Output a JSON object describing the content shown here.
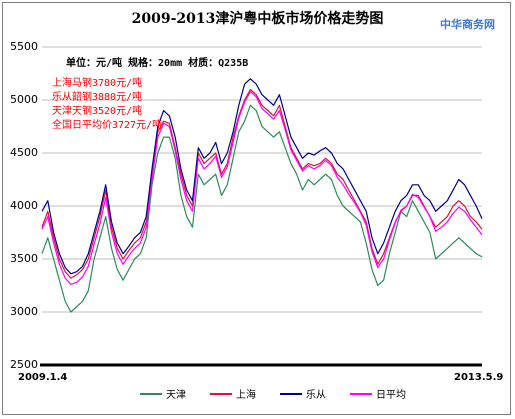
{
  "chart_data": {
    "type": "line",
    "title": "2009-2013津沪粤中板市场价格走势图",
    "brand": "中华商务网",
    "unit_note": "单位：元/吨 规格：20mm 材质：Q235B",
    "annotations": [
      "上海马钢3780元/吨",
      "乐从韶钢3880元/吨",
      "天津天钢3520元/吨",
      "全国日平均价3727元/吨"
    ],
    "x_start_label": "2009.1.4",
    "x_end_label": "2013.5.9",
    "ylim": [
      2500,
      5500
    ],
    "yticks": [
      2500,
      3000,
      3500,
      4000,
      4500,
      5000,
      5500
    ],
    "x": [
      0,
      2,
      4,
      6,
      8,
      10,
      12,
      14,
      16,
      18,
      20,
      22,
      24,
      26,
      28,
      30,
      32,
      34,
      36,
      38,
      40,
      42,
      44,
      46,
      48,
      50,
      52,
      54,
      56,
      58,
      60,
      62,
      64,
      66,
      68,
      70,
      72,
      74,
      76,
      78,
      80,
      82,
      84,
      86,
      88,
      90,
      92,
      94,
      96,
      98,
      100,
      102,
      104,
      106,
      108,
      110,
      112,
      114,
      116,
      118,
      120,
      122,
      124,
      126,
      128,
      130,
      132,
      134,
      136,
      138,
      140,
      142,
      144,
      146,
      148,
      150,
      152
    ],
    "series": [
      {
        "name": "天津",
        "color": "#2e8b57",
        "values": [
          3550,
          3700,
          3500,
          3300,
          3100,
          3000,
          3050,
          3100,
          3200,
          3500,
          3700,
          3900,
          3600,
          3400,
          3300,
          3400,
          3500,
          3550,
          3700,
          4200,
          4500,
          4650,
          4650,
          4450,
          4100,
          3900,
          3800,
          4300,
          4200,
          4250,
          4300,
          4100,
          4200,
          4450,
          4700,
          4800,
          4950,
          4900,
          4750,
          4700,
          4650,
          4700,
          4550,
          4400,
          4300,
          4150,
          4250,
          4200,
          4250,
          4300,
          4250,
          4100,
          4000,
          3950,
          3900,
          3850,
          3650,
          3400,
          3250,
          3300,
          3550,
          3750,
          3950,
          3900,
          4050,
          3950,
          3850,
          3750,
          3500,
          3550,
          3600,
          3650,
          3700,
          3650,
          3600,
          3550,
          3520
        ]
      },
      {
        "name": "上海",
        "color": "#dc143c",
        "values": [
          3800,
          3950,
          3700,
          3500,
          3380,
          3320,
          3350,
          3400,
          3500,
          3700,
          3900,
          4150,
          3800,
          3600,
          3500,
          3580,
          3650,
          3700,
          3850,
          4300,
          4700,
          4800,
          4780,
          4550,
          4300,
          4100,
          4000,
          4500,
          4400,
          4450,
          4500,
          4300,
          4400,
          4650,
          4850,
          5000,
          5100,
          5050,
          4950,
          4900,
          4850,
          4950,
          4750,
          4550,
          4450,
          4350,
          4400,
          4380,
          4400,
          4450,
          4400,
          4300,
          4250,
          4150,
          4050,
          3950,
          3850,
          3600,
          3450,
          3550,
          3700,
          3850,
          3950,
          4000,
          4100,
          4100,
          4000,
          3900,
          3800,
          3850,
          3900,
          4000,
          4050,
          4000,
          3900,
          3850,
          3780
        ]
      },
      {
        "name": "乐从",
        "color": "#00008b",
        "values": [
          3950,
          4050,
          3750,
          3550,
          3420,
          3360,
          3380,
          3430,
          3550,
          3750,
          3950,
          4200,
          3850,
          3650,
          3550,
          3620,
          3700,
          3750,
          3900,
          4350,
          4750,
          4900,
          4850,
          4650,
          4350,
          4150,
          4050,
          4550,
          4450,
          4500,
          4600,
          4400,
          4500,
          4700,
          4950,
          5150,
          5200,
          5150,
          5050,
          5000,
          4950,
          5050,
          4850,
          4650,
          4550,
          4450,
          4500,
          4480,
          4520,
          4550,
          4500,
          4400,
          4350,
          4250,
          4150,
          4050,
          3950,
          3700,
          3550,
          3650,
          3800,
          3950,
          4050,
          4100,
          4200,
          4200,
          4100,
          4050,
          3950,
          4000,
          4050,
          4150,
          4250,
          4200,
          4100,
          4000,
          3880
        ]
      },
      {
        "name": "日平均",
        "color": "#ff00ff",
        "values": [
          3780,
          3900,
          3650,
          3450,
          3320,
          3260,
          3280,
          3330,
          3430,
          3640,
          3830,
          4080,
          3750,
          3550,
          3450,
          3530,
          3600,
          3650,
          3800,
          4250,
          4650,
          4780,
          4750,
          4520,
          4250,
          4050,
          3950,
          4450,
          4350,
          4400,
          4470,
          4270,
          4370,
          4600,
          4830,
          4980,
          5080,
          5030,
          4920,
          4870,
          4820,
          4900,
          4720,
          4530,
          4430,
          4330,
          4380,
          4350,
          4380,
          4430,
          4380,
          4270,
          4200,
          4110,
          4030,
          3940,
          3820,
          3570,
          3420,
          3500,
          3680,
          3840,
          3960,
          4000,
          4110,
          4080,
          3990,
          3900,
          3760,
          3800,
          3850,
          3930,
          3990,
          3950,
          3870,
          3800,
          3727
        ]
      }
    ]
  }
}
